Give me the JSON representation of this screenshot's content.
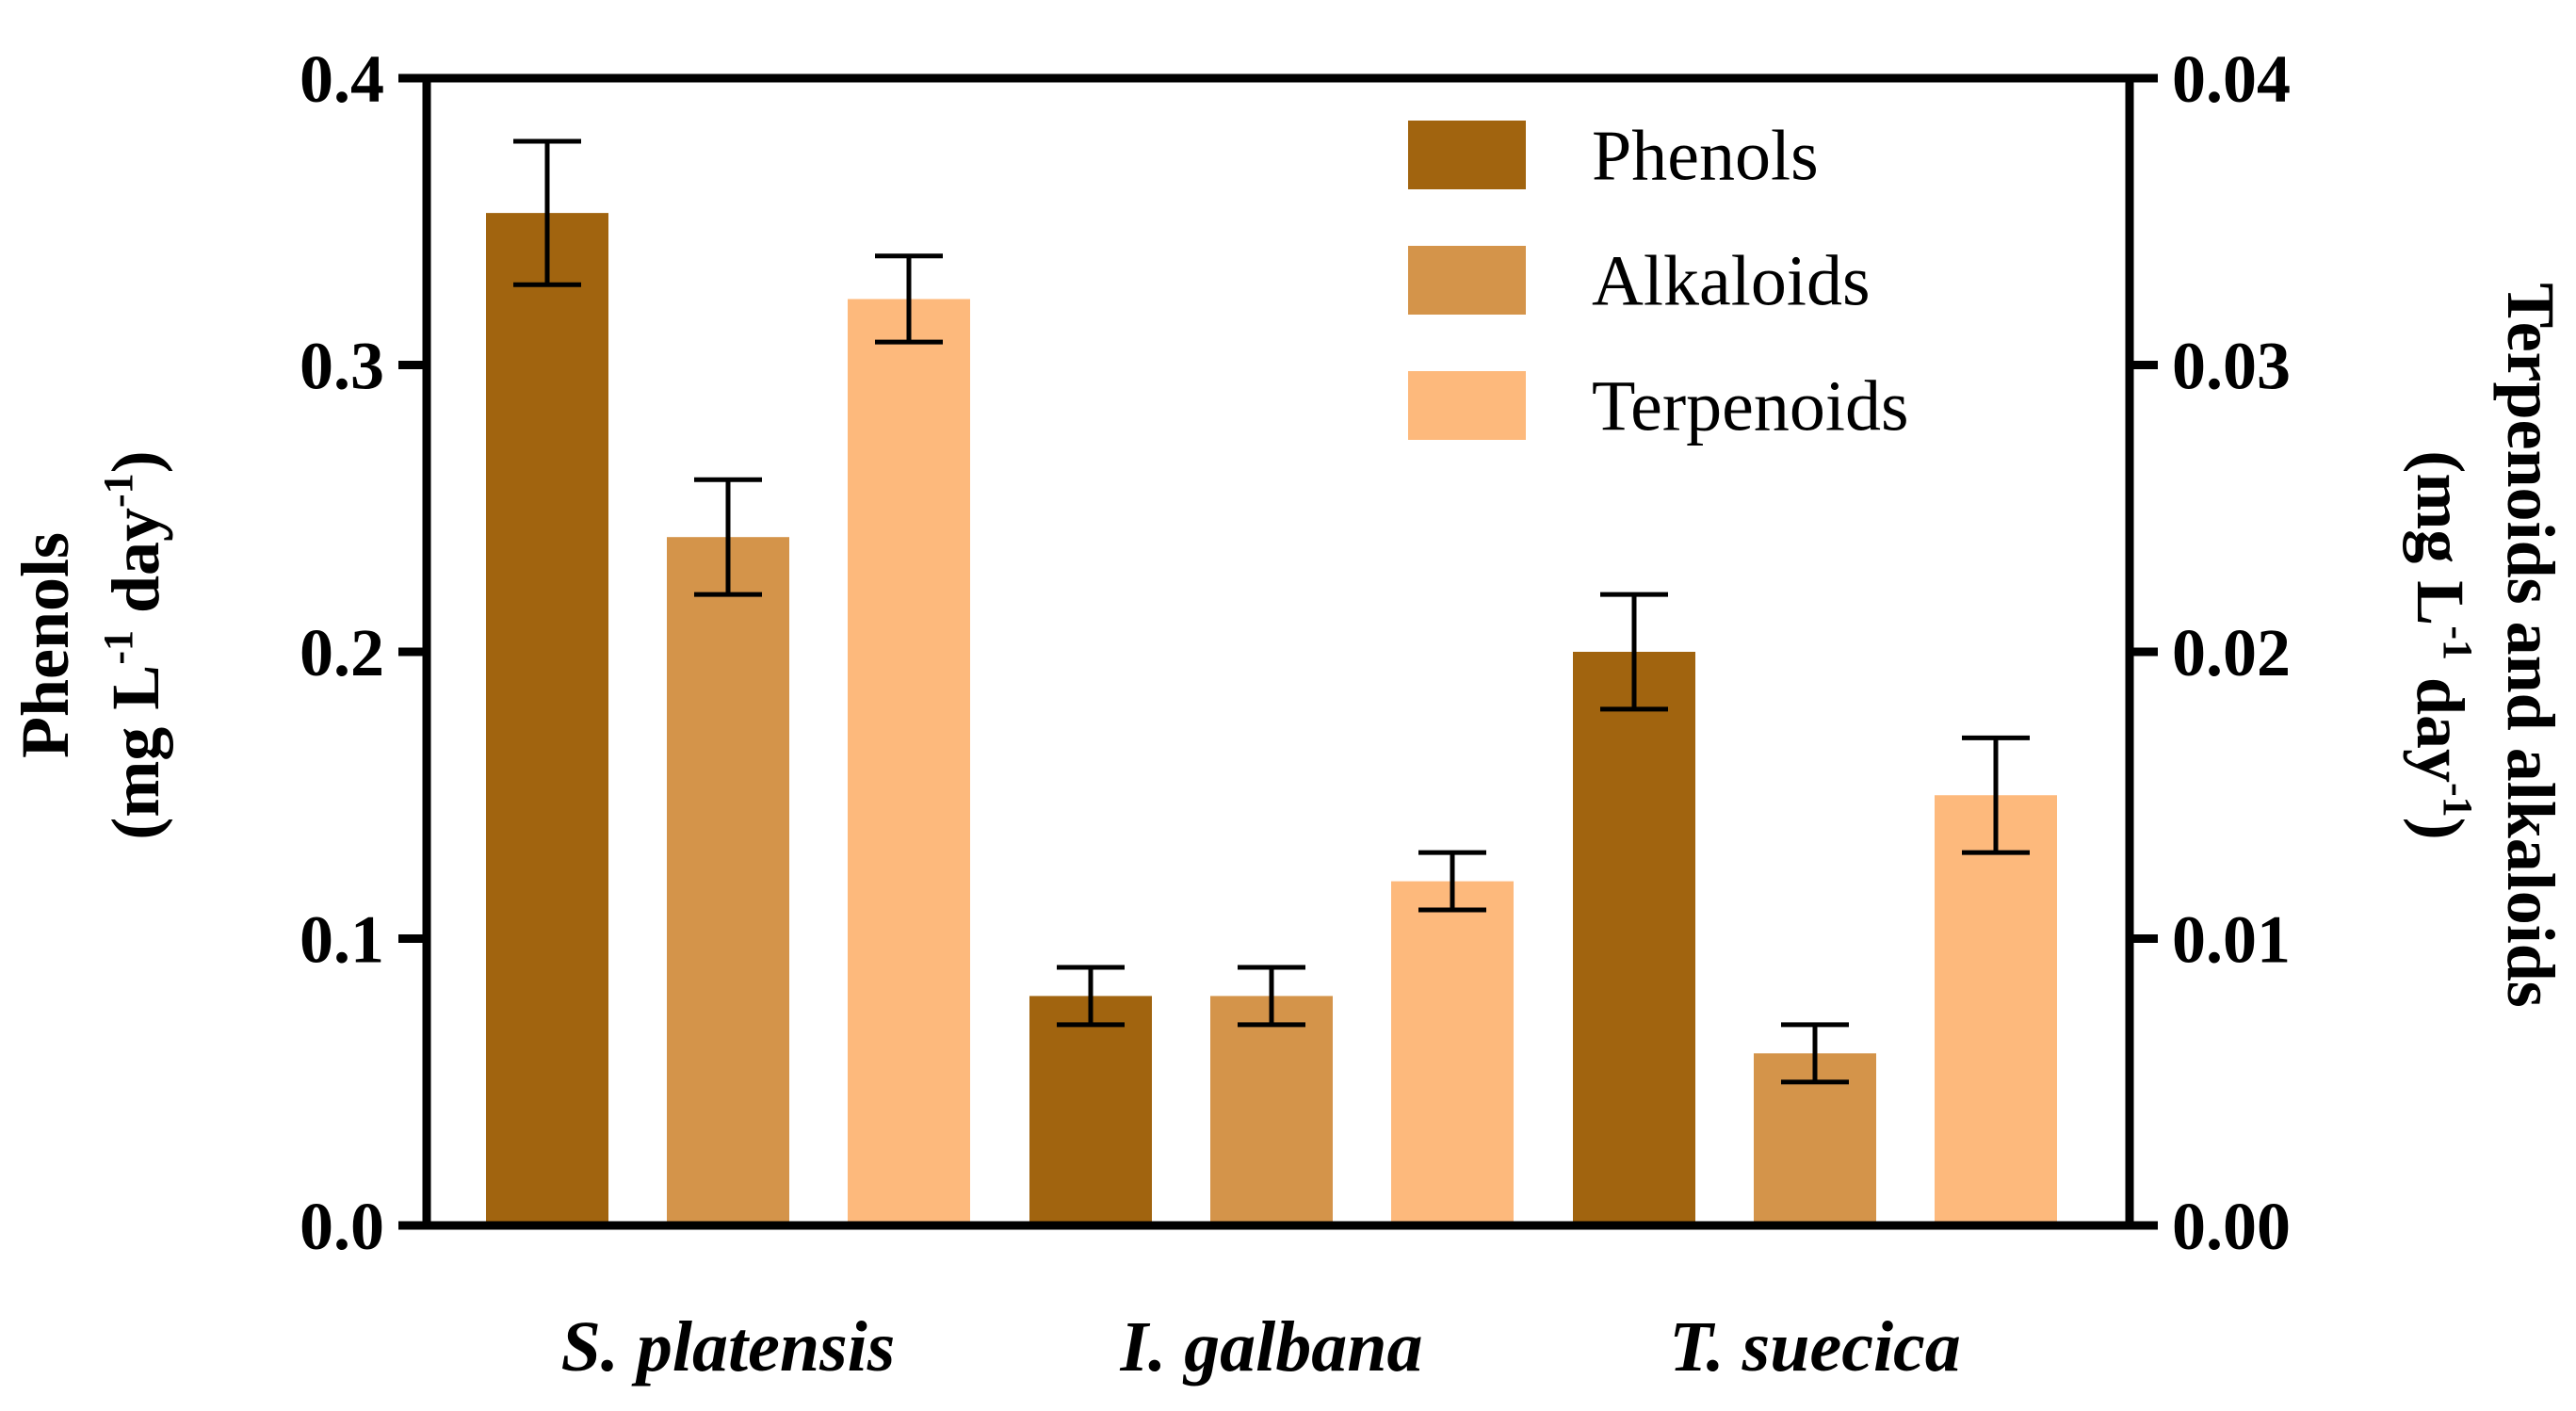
{
  "chart_data": {
    "type": "bar",
    "categories": [
      "S. platensis",
      "I. galbana",
      "T. suecica"
    ],
    "series": [
      {
        "name": "Phenols",
        "axis": "left",
        "color": "#a1640f",
        "values": [
          0.353,
          0.08,
          0.2
        ],
        "errors": [
          0.025,
          0.01,
          0.02
        ]
      },
      {
        "name": "Alkaloids",
        "axis": "right",
        "color": "#d4944a",
        "values": [
          0.024,
          0.008,
          0.006
        ],
        "errors": [
          0.002,
          0.001,
          0.001
        ]
      },
      {
        "name": "Terpenoids",
        "axis": "right",
        "color": "#fdb97c",
        "values": [
          0.0323,
          0.012,
          0.015
        ],
        "errors": [
          0.0015,
          0.001,
          0.002
        ]
      }
    ],
    "left_axis": {
      "ylim": [
        0,
        0.4
      ],
      "ticks": [
        "0.0",
        "0.1",
        "0.2",
        "0.3",
        "0.4"
      ],
      "title_line1": "Phenols",
      "title_line2_parts": [
        "(mg L",
        "-1",
        " day",
        "-1",
        ")"
      ]
    },
    "right_axis": {
      "ylim": [
        0,
        0.04
      ],
      "ticks": [
        "0.00",
        "0.01",
        "0.02",
        "0.03",
        "0.04"
      ],
      "title_line1": "Terpenoids and alkaloids",
      "title_line2_parts": [
        "(mg L",
        "-1",
        " day",
        "-1",
        ")"
      ]
    },
    "legend_position": "top-right",
    "grid": false
  }
}
